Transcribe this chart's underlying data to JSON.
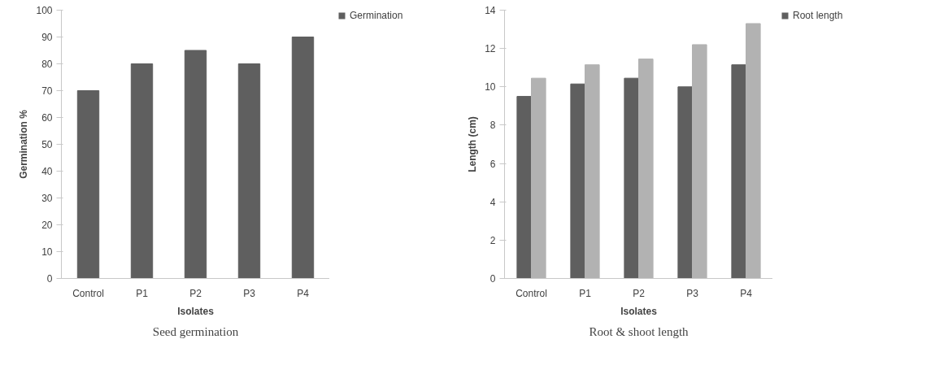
{
  "chart_data": [
    {
      "type": "bar",
      "title": "Seed germination",
      "xlabel": "Isolates",
      "ylabel": "Germination %",
      "categories": [
        "Control",
        "P1",
        "P2",
        "P3",
        "P4"
      ],
      "series": [
        {
          "name": "Germination",
          "color": "#5f5f5f",
          "values": [
            70,
            80,
            85,
            80,
            90
          ]
        }
      ],
      "ylim": [
        0,
        100
      ],
      "yticks": [
        0,
        10,
        20,
        30,
        40,
        50,
        60,
        70,
        80,
        90,
        100
      ],
      "grid": false,
      "legend": "top right"
    },
    {
      "type": "bar",
      "title": "Root & shoot length",
      "xlabel": "Isolates",
      "ylabel": "Length (cm)",
      "categories": [
        "Control",
        "P1",
        "P2",
        "P3",
        "P4"
      ],
      "series": [
        {
          "name": "Root length",
          "color": "#5f5f5f",
          "values": [
            9.5,
            10.15,
            10.45,
            10.0,
            11.15
          ]
        },
        {
          "color": "#b2b2b2",
          "values": [
            10.45,
            11.15,
            11.45,
            12.2,
            13.3
          ]
        }
      ],
      "ylim": [
        0,
        14
      ],
      "yticks": [
        0,
        2,
        4,
        6,
        8,
        10,
        12,
        14
      ],
      "grid": false,
      "legend": "top right"
    }
  ]
}
